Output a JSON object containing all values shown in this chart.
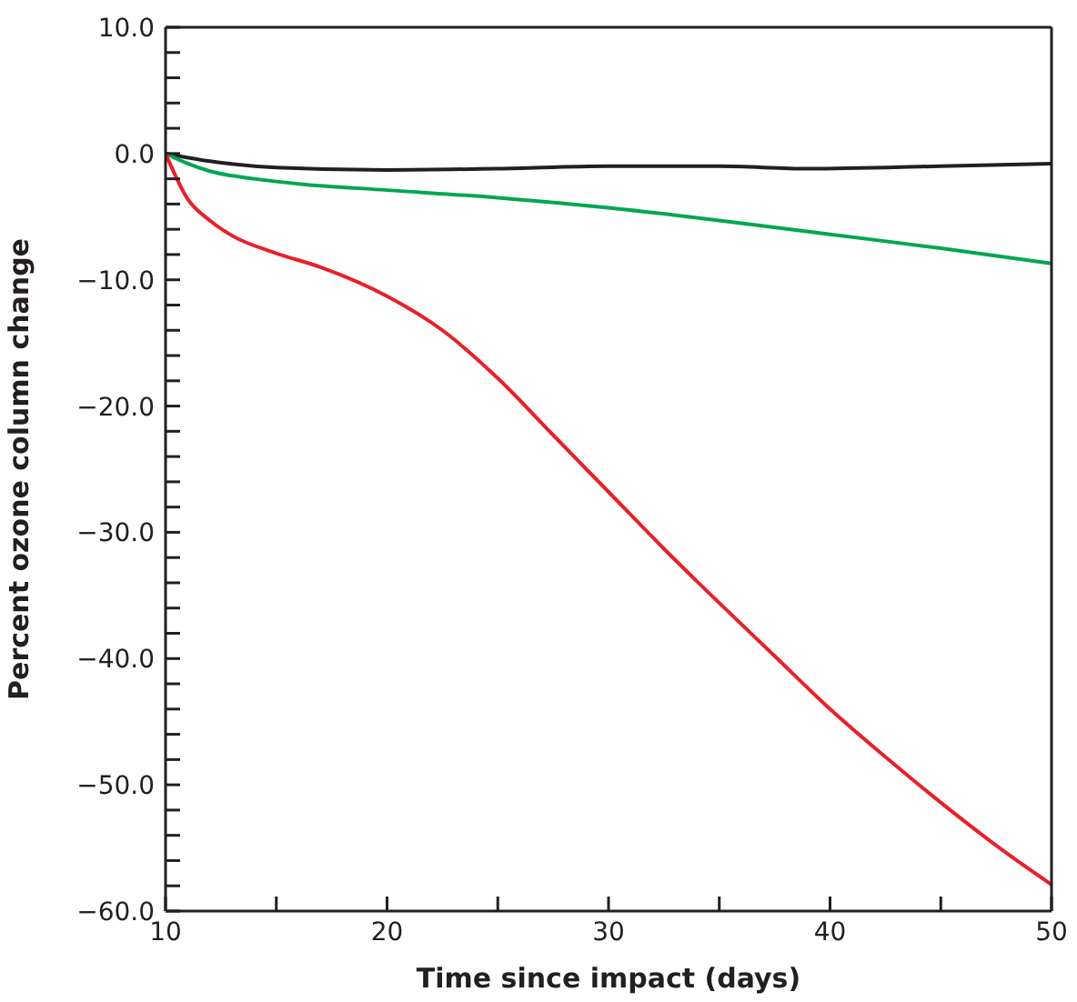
{
  "chart_data": {
    "type": "line",
    "xlabel": "Time since impact (days)",
    "ylabel": "Percent ozone column change",
    "xlim": [
      10,
      50
    ],
    "ylim": [
      -60,
      10
    ],
    "xticks": [
      10,
      {
        "value": 15,
        "label": null
      },
      20,
      {
        "value": 25,
        "label": null
      },
      30,
      {
        "value": 35,
        "label": null
      },
      40,
      {
        "value": 45,
        "label": null
      },
      50
    ],
    "yticks": [
      {
        "value": -60,
        "label": "−60.0"
      },
      {
        "value": -58,
        "label": null
      },
      {
        "value": -56,
        "label": null
      },
      {
        "value": -54,
        "label": null
      },
      {
        "value": -52,
        "label": null
      },
      {
        "value": -50,
        "label": "−50.0"
      },
      {
        "value": -48,
        "label": null
      },
      {
        "value": -46,
        "label": null
      },
      {
        "value": -44,
        "label": null
      },
      {
        "value": -42,
        "label": null
      },
      {
        "value": -40,
        "label": "−40.0"
      },
      {
        "value": -38,
        "label": null
      },
      {
        "value": -36,
        "label": null
      },
      {
        "value": -34,
        "label": null
      },
      {
        "value": -32,
        "label": null
      },
      {
        "value": -30,
        "label": "−30.0"
      },
      {
        "value": -28,
        "label": null
      },
      {
        "value": -26,
        "label": null
      },
      {
        "value": -24,
        "label": null
      },
      {
        "value": -22,
        "label": null
      },
      {
        "value": -20,
        "label": "−20.0"
      },
      {
        "value": -18,
        "label": null
      },
      {
        "value": -16,
        "label": null
      },
      {
        "value": -14,
        "label": null
      },
      {
        "value": -12,
        "label": null
      },
      {
        "value": -10,
        "label": "−10.0"
      },
      {
        "value": -8,
        "label": null
      },
      {
        "value": -6,
        "label": null
      },
      {
        "value": -4,
        "label": null
      },
      {
        "value": -2,
        "label": null
      },
      {
        "value": 0,
        "label": "0.0"
      },
      {
        "value": 2,
        "label": null
      },
      {
        "value": 4,
        "label": null
      },
      {
        "value": 6,
        "label": null
      },
      {
        "value": 8,
        "label": null
      },
      {
        "value": 10,
        "label": "10.0"
      }
    ],
    "marker": "none",
    "line_style": "solid",
    "series": [
      {
        "color": "#231f20",
        "x": [
          10,
          12,
          15,
          20,
          25,
          30,
          35,
          39,
          45,
          50
        ],
        "values": [
          0,
          -0.6,
          -1.1,
          -1.3,
          -1.2,
          -1.0,
          -1.0,
          -1.2,
          -1.0,
          -0.8
        ]
      },
      {
        "color": "#00a651",
        "x": [
          10,
          11,
          12,
          14,
          16,
          20,
          25,
          30,
          35,
          40,
          45,
          50
        ],
        "values": [
          0,
          -0.8,
          -1.4,
          -2.0,
          -2.4,
          -2.9,
          -3.5,
          -4.3,
          -5.3,
          -6.4,
          -7.5,
          -8.7
        ]
      },
      {
        "color": "#e8202a",
        "x": [
          10,
          11,
          12,
          13,
          15,
          17,
          20,
          22.5,
          25,
          27.5,
          30,
          32.5,
          35,
          37.5,
          40,
          42.5,
          45,
          47.5,
          50
        ],
        "values": [
          0,
          -3.6,
          -5.3,
          -6.5,
          -7.9,
          -9.0,
          -11.3,
          -14,
          -17.8,
          -22.3,
          -26.8,
          -31.3,
          -35.6,
          -39.8,
          -44,
          -47.8,
          -51.4,
          -54.8,
          -57.9
        ]
      }
    ]
  }
}
